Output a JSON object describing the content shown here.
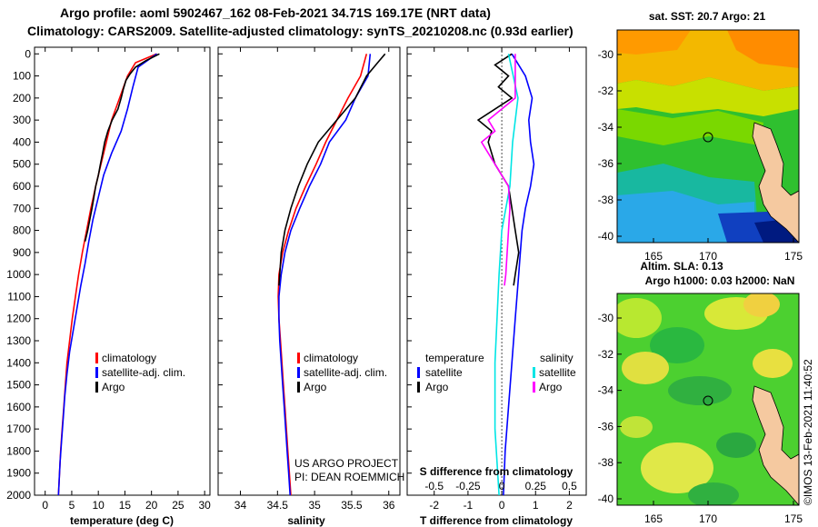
{
  "header": {
    "title_line1": "Argo profile: aoml 5902467_162 08-Feb-2021 34.71S 169.17E (NRT data)",
    "title_line2": "Climatology: CARS2009. Satellite-adjusted climatology: synTS_20210208.nc (0.93d earlier)"
  },
  "colors": {
    "climatology": "#ff0000",
    "satellite_adj": "#0000ff",
    "argo": "#000000",
    "salinity_satellite": "#00e5e5",
    "salinity_argo": "#ff00ff",
    "land": "#f5c9a0"
  },
  "chart_data": [
    {
      "type": "line",
      "id": "temperature",
      "xlabel": "temperature (deg C)",
      "ylabel": "",
      "xlim": [
        -2,
        31
      ],
      "ylim": [
        2000,
        -30
      ],
      "xticks": [
        0,
        5,
        10,
        15,
        20,
        25,
        30
      ],
      "yticks": [
        0,
        100,
        200,
        300,
        400,
        500,
        600,
        700,
        800,
        900,
        1000,
        1100,
        1200,
        1300,
        1400,
        1500,
        1600,
        1700,
        1800,
        1900,
        2000
      ],
      "legend": [
        "climatology",
        "satellite-adj. clim.",
        "Argo"
      ],
      "series": [
        {
          "name": "climatology",
          "color": "#ff0000",
          "points": [
            [
              21,
              0
            ],
            [
              17,
              40
            ],
            [
              15.5,
              100
            ],
            [
              14,
              200
            ],
            [
              12.5,
              300
            ],
            [
              11.5,
              400
            ],
            [
              10.5,
              500
            ],
            [
              9.5,
              600
            ],
            [
              8.6,
              700
            ],
            [
              7.8,
              800
            ],
            [
              7,
              900
            ],
            [
              6.3,
              1000
            ],
            [
              5.7,
              1100
            ],
            [
              5.1,
              1200
            ],
            [
              4.6,
              1300
            ],
            [
              4.1,
              1400
            ],
            [
              3.8,
              1500
            ],
            [
              3.5,
              1600
            ],
            [
              3.2,
              1700
            ],
            [
              2.9,
              1800
            ],
            [
              2.7,
              1900
            ],
            [
              2.5,
              2000
            ]
          ]
        },
        {
          "name": "satellite-adj. clim.",
          "color": "#0000ff",
          "points": [
            [
              21,
              0
            ],
            [
              17.5,
              60
            ],
            [
              16.5,
              150
            ],
            [
              15.5,
              250
            ],
            [
              14.3,
              350
            ],
            [
              12.5,
              450
            ],
            [
              11,
              550
            ],
            [
              10,
              650
            ],
            [
              9,
              750
            ],
            [
              8.2,
              850
            ],
            [
              7.5,
              950
            ],
            [
              6.7,
              1050
            ],
            [
              6,
              1150
            ],
            [
              5.3,
              1250
            ],
            [
              4.6,
              1350
            ],
            [
              4.1,
              1450
            ],
            [
              3.7,
              1550
            ],
            [
              3.4,
              1650
            ],
            [
              3.1,
              1750
            ],
            [
              2.8,
              1850
            ],
            [
              2.6,
              1950
            ],
            [
              2.5,
              2000
            ]
          ]
        },
        {
          "name": "Argo",
          "color": "#000000",
          "points": [
            [
              21.5,
              0
            ],
            [
              19,
              30
            ],
            [
              17,
              60
            ],
            [
              16,
              90
            ],
            [
              15.2,
              120
            ],
            [
              14.7,
              160
            ],
            [
              14.3,
              200
            ],
            [
              13.7,
              250
            ],
            [
              12.6,
              300
            ],
            [
              11.8,
              350
            ],
            [
              11.2,
              400
            ],
            [
              10.8,
              450
            ],
            [
              10.4,
              500
            ],
            [
              10,
              550
            ],
            [
              9.5,
              600
            ],
            [
              8.8,
              700
            ],
            [
              8,
              800
            ],
            [
              7.5,
              850
            ]
          ]
        }
      ]
    },
    {
      "type": "line",
      "id": "salinity",
      "xlabel": "salinity",
      "ylabel": "",
      "xlim": [
        33.7,
        36.15
      ],
      "ylim": [
        2000,
        -30
      ],
      "xticks": [
        34,
        34.5,
        35,
        35.5,
        36
      ],
      "xticklabels": [
        "34",
        "34.5",
        "35",
        "35.5",
        "36"
      ],
      "legend": [
        "climatology",
        "satellite-adj. clim.",
        "Argo"
      ],
      "series": [
        {
          "name": "climatology",
          "color": "#ff0000",
          "points": [
            [
              35.7,
              0
            ],
            [
              35.62,
              100
            ],
            [
              35.45,
              200
            ],
            [
              35.3,
              300
            ],
            [
              35.15,
              400
            ],
            [
              35.02,
              500
            ],
            [
              34.88,
              600
            ],
            [
              34.75,
              700
            ],
            [
              34.65,
              800
            ],
            [
              34.57,
              900
            ],
            [
              34.52,
              1000
            ],
            [
              34.51,
              1100
            ],
            [
              34.52,
              1200
            ],
            [
              34.54,
              1300
            ],
            [
              34.56,
              1400
            ],
            [
              34.58,
              1500
            ],
            [
              34.6,
              1600
            ],
            [
              34.62,
              1700
            ],
            [
              34.64,
              1800
            ],
            [
              34.66,
              1900
            ],
            [
              34.68,
              2000
            ]
          ]
        },
        {
          "name": "satellite-adj. clim.",
          "color": "#0000ff",
          "points": [
            [
              35.75,
              0
            ],
            [
              35.72,
              100
            ],
            [
              35.55,
              200
            ],
            [
              35.42,
              300
            ],
            [
              35.2,
              400
            ],
            [
              35.08,
              500
            ],
            [
              34.93,
              600
            ],
            [
              34.8,
              700
            ],
            [
              34.68,
              800
            ],
            [
              34.6,
              900
            ],
            [
              34.55,
              1000
            ],
            [
              34.52,
              1100
            ],
            [
              34.52,
              1200
            ],
            [
              34.53,
              1300
            ],
            [
              34.55,
              1400
            ],
            [
              34.57,
              1500
            ],
            [
              34.59,
              1600
            ],
            [
              34.61,
              1700
            ],
            [
              34.63,
              1800
            ],
            [
              34.65,
              1900
            ],
            [
              34.67,
              2000
            ]
          ]
        },
        {
          "name": "Argo",
          "color": "#000000",
          "points": [
            [
              35.95,
              0
            ],
            [
              35.85,
              40
            ],
            [
              35.7,
              100
            ],
            [
              35.55,
              200
            ],
            [
              35.3,
              300
            ],
            [
              35.05,
              400
            ],
            [
              34.9,
              500
            ],
            [
              34.78,
              600
            ],
            [
              34.68,
              700
            ],
            [
              34.6,
              800
            ],
            [
              34.55,
              900
            ],
            [
              34.53,
              1000
            ],
            [
              34.52,
              1050
            ]
          ]
        }
      ]
    },
    {
      "type": "line",
      "id": "difference",
      "xlabel": "T difference from climatology",
      "xlabel_top": "S difference from climatology",
      "xlim": [
        -2.8,
        2.5
      ],
      "ylim": [
        2000,
        -30
      ],
      "xticks": [
        -2,
        -1,
        0,
        1,
        2
      ],
      "xticks_top": [
        -0.5,
        -0.25,
        0,
        0.25,
        0.5
      ],
      "xticklabels_top": [
        "-0.5",
        "-0.25",
        "0",
        "0.25",
        "0.5"
      ],
      "legend": [
        "temperature satellite",
        "temperature Argo",
        "salinity satellite",
        "salinity Argo"
      ],
      "series": [
        {
          "name": "T satellite",
          "color": "#0000ff",
          "points": [
            [
              0.3,
              0
            ],
            [
              0.7,
              100
            ],
            [
              0.9,
              200
            ],
            [
              0.8,
              300
            ],
            [
              0.85,
              400
            ],
            [
              0.95,
              500
            ],
            [
              0.85,
              600
            ],
            [
              0.7,
              700
            ],
            [
              0.6,
              800
            ],
            [
              0.55,
              900
            ],
            [
              0.5,
              1000
            ],
            [
              0.4,
              1200
            ],
            [
              0.3,
              1400
            ],
            [
              0.2,
              1600
            ],
            [
              0.1,
              1800
            ],
            [
              0.05,
              2000
            ]
          ]
        },
        {
          "name": "T Argo",
          "color": "#000000",
          "points": [
            [
              0.3,
              0
            ],
            [
              -0.2,
              50
            ],
            [
              0.2,
              100
            ],
            [
              -0.1,
              150
            ],
            [
              0.3,
              200
            ],
            [
              -0.7,
              300
            ],
            [
              -0.3,
              350
            ],
            [
              -0.4,
              400
            ],
            [
              -0.2,
              500
            ],
            [
              0.2,
              600
            ],
            [
              0.3,
              700
            ],
            [
              0.4,
              800
            ],
            [
              0.5,
              900
            ],
            [
              0.4,
              1000
            ],
            [
              0.35,
              1050
            ]
          ]
        },
        {
          "name": "S satellite",
          "color": "#00e5e5",
          "points": [
            [
              0.05,
              0
            ],
            [
              0.12,
              200
            ],
            [
              0.08,
              400
            ],
            [
              0.06,
              600
            ],
            [
              0.0,
              800
            ],
            [
              -0.02,
              1000
            ],
            [
              -0.05,
              1400
            ],
            [
              -0.05,
              1700
            ],
            [
              -0.03,
              1900
            ],
            [
              -0.02,
              2000
            ]
          ]
        },
        {
          "name": "S Argo",
          "color": "#ff00ff",
          "points": [
            [
              0.1,
              0
            ],
            [
              0.1,
              200
            ],
            [
              -0.1,
              300
            ],
            [
              -0.05,
              350
            ],
            [
              -0.15,
              400
            ],
            [
              -0.05,
              500
            ],
            [
              0.05,
              600
            ],
            [
              0.06,
              700
            ],
            [
              0.05,
              800
            ],
            [
              0.04,
              900
            ],
            [
              0.03,
              1000
            ],
            [
              0.02,
              1050
            ]
          ]
        }
      ]
    }
  ],
  "panels": {
    "temperature": {
      "legend": {
        "climatology": "climatology",
        "sat": "satellite-adj. clim.",
        "argo": "Argo"
      }
    },
    "salinity": {
      "legend": {
        "climatology": "climatology",
        "sat": "satellite-adj. clim.",
        "argo": "Argo"
      },
      "credit1": "US ARGO PROJECT",
      "credit2": "PI: DEAN ROEMMICH"
    },
    "difference": {
      "legend": {
        "temp_title": "temperature",
        "sal_title": "salinity",
        "temp_sat": "satellite",
        "temp_argo": "Argo",
        "sal_sat": "satellite",
        "sal_argo": "Argo"
      }
    }
  },
  "maps": {
    "top": {
      "title": "sat. SST: 20.7 Argo: 21",
      "yticks": [
        "-30",
        "-32",
        "-34",
        "-36",
        "-38",
        "-40"
      ],
      "xticks": [
        "165",
        "170",
        "175"
      ]
    },
    "bottom": {
      "title1": "Altim. SLA: 0.13",
      "title2": "Argo h1000: 0.03 h2000: NaN",
      "yticks": [
        "-30",
        "-32",
        "-34",
        "-36",
        "-38",
        "-40"
      ],
      "xticks": [
        "165",
        "170",
        "175"
      ]
    }
  },
  "footer": {
    "copyright": "©IMOS 13-Feb-2021 11:40:52"
  }
}
